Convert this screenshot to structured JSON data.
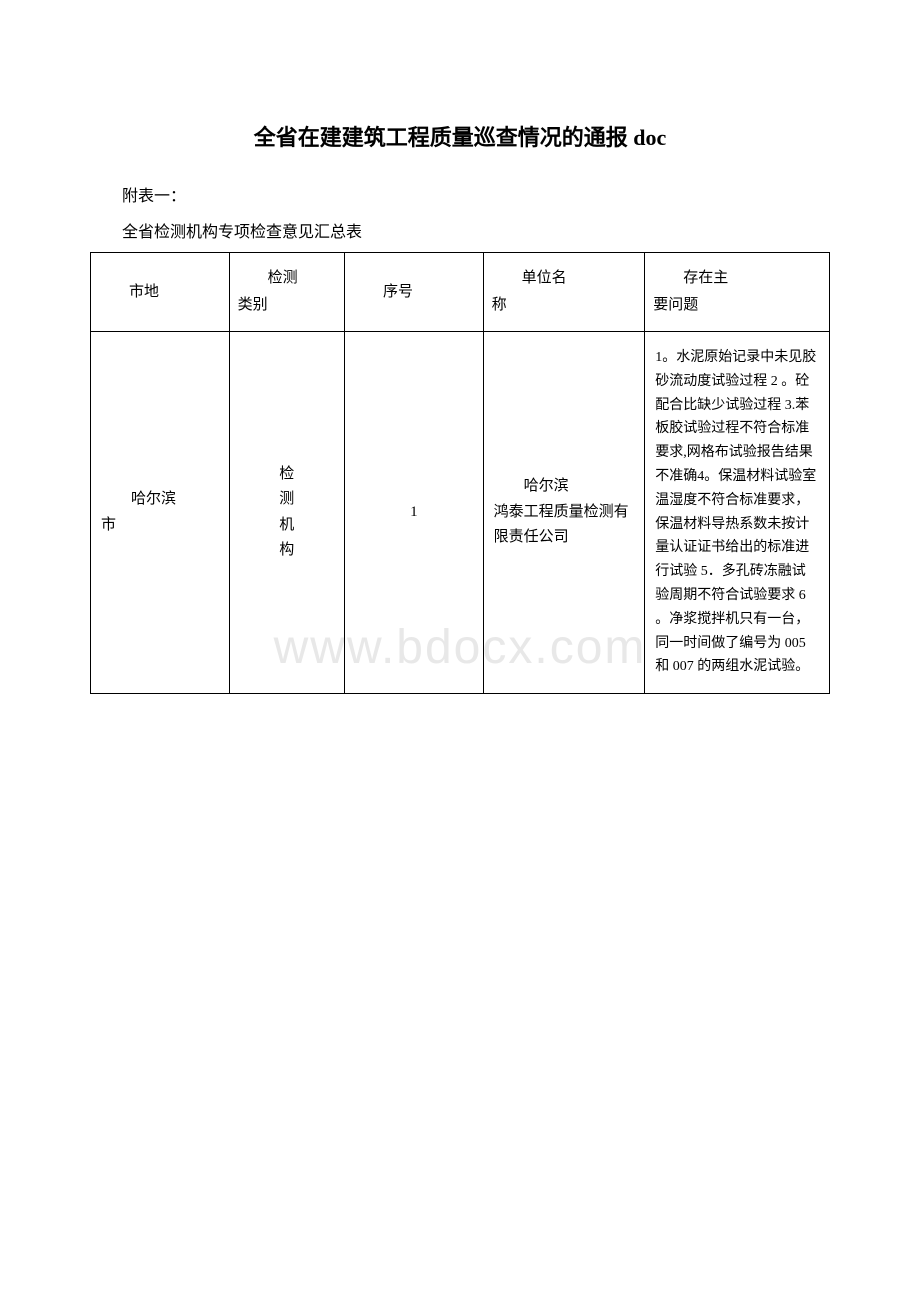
{
  "document": {
    "title": "全省在建建筑工程质量巡查情况的通报 doc",
    "attachment_label": "附表一：",
    "subtitle": "全省检测机构专项检查意见汇总表",
    "watermark": "www.bdocx.com"
  },
  "table": {
    "headers": {
      "city": "市地",
      "type_line1": "检测",
      "type_line2": "类别",
      "number": "序号",
      "name_line1": "单位名",
      "name_line2": "称",
      "issue_line1": "存在主",
      "issue_line2": "要问题"
    },
    "row": {
      "city_line1": "哈尔滨",
      "city_line2": "市",
      "type_char1": "检",
      "type_char2": "测",
      "type_char3": "机",
      "type_char4": "构",
      "number": "1",
      "name_part1": "哈尔滨",
      "name_part2": "鸿泰工程质量检测有限责任公司",
      "issue": "1。水泥原始记录中未见胶砂流动度试验过程 2 。砼配合比缺少试验过程 3.苯板胶试验过程不符合标准要求,网格布试验报告结果不准确4。保温材料试验室温湿度不符合标准要求，保温材料导热系数未按计量认证证书给出的标准进行试验 5．多孔砖冻融试验周期不符合试验要求 6 。净浆搅拌机只有一台，同一时间做了编号为 005和 007 的两组水泥试验。"
    }
  },
  "styling": {
    "background_color": "#ffffff",
    "text_color": "#000000",
    "border_color": "#000000",
    "watermark_color": "#e8e8e8",
    "title_fontsize": 22,
    "body_fontsize": 16,
    "table_fontsize": 15,
    "issue_fontsize": 14
  }
}
